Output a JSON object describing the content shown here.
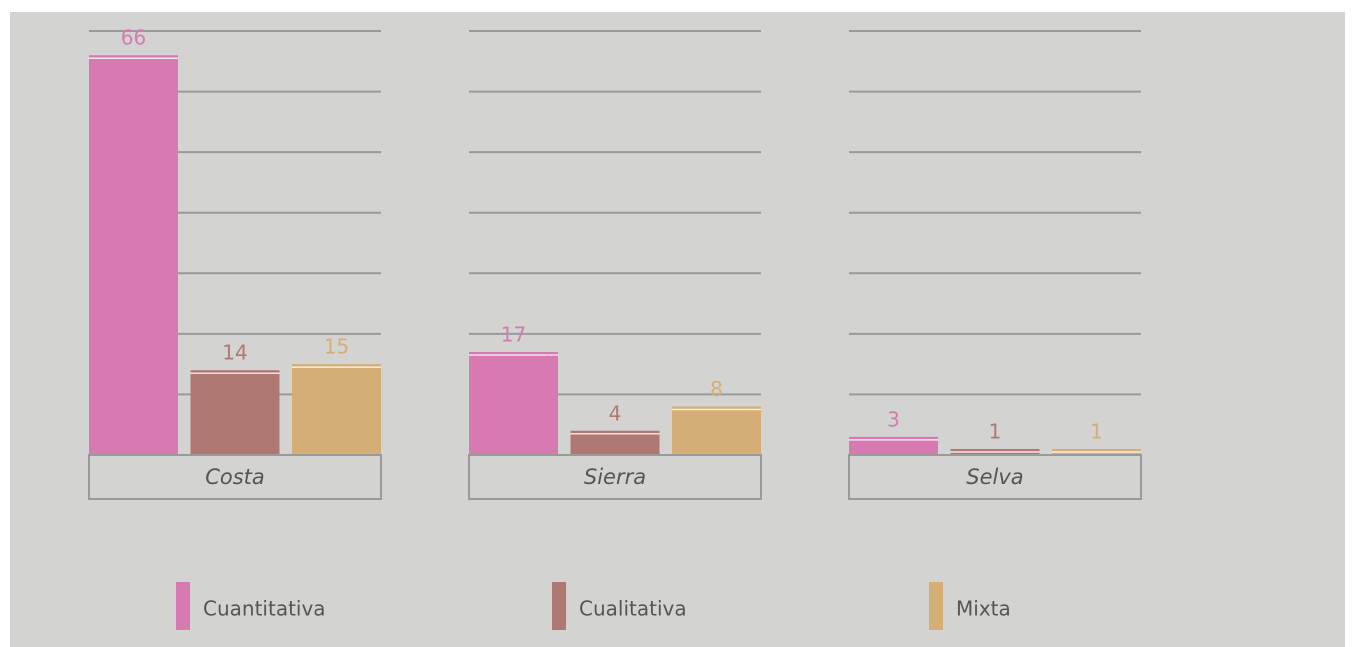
{
  "chart_data": {
    "type": "bar",
    "categories": [
      "Costa",
      "Sierra",
      "Selva"
    ],
    "series": [
      {
        "name": "Cuantitativa",
        "color": "#d67ab1",
        "values": [
          66,
          17,
          3
        ]
      },
      {
        "name": "Cualitativa",
        "color": "#b07872",
        "values": [
          14,
          4,
          1
        ]
      },
      {
        "name": "Mixta",
        "color": "#d4ae74",
        "values": [
          15,
          8,
          1
        ]
      }
    ],
    "ylim": [
      0,
      70
    ],
    "yticks": [
      0,
      10,
      20,
      30,
      40,
      50,
      60,
      70
    ],
    "grid": true
  }
}
